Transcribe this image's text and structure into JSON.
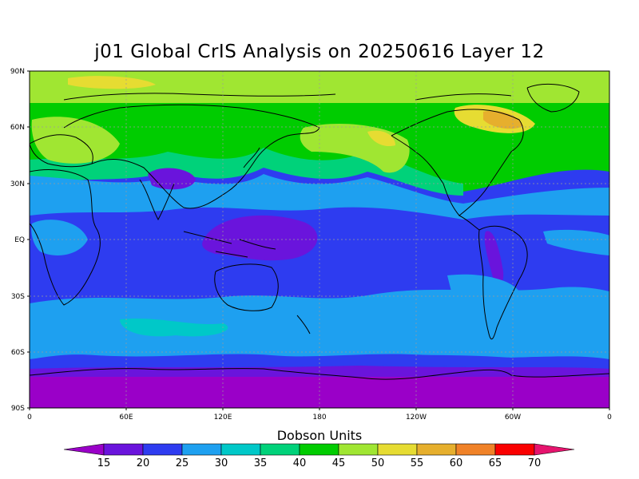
{
  "title": "j01 Global CrIS Analysis on 20250616 Layer 12",
  "lat_ticks": [
    "90N",
    "60N",
    "30N",
    "EQ",
    "30S",
    "60S",
    "90S"
  ],
  "lon_ticks": [
    "0",
    "60E",
    "120E",
    "180",
    "120W",
    "60W",
    "0"
  ],
  "colorbar": {
    "title": "Dobson Units",
    "levels": [
      "15",
      "20",
      "25",
      "30",
      "35",
      "40",
      "45",
      "50",
      "55",
      "60",
      "65",
      "70"
    ],
    "colors": [
      "#9a00c8",
      "#6a14dc",
      "#2e3cf0",
      "#1ea0f0",
      "#00c8c8",
      "#00d27a",
      "#00cc00",
      "#a0e632",
      "#e6dc32",
      "#e6af2d",
      "#f08228",
      "#fa0000",
      "#e6146e"
    ]
  },
  "field_description_colors": {
    "arctic": "#a0e632",
    "midlat_north": "#00cc00",
    "subtropics": "#1ea0f0",
    "tropics": "#2e3cf0",
    "tropical_low": "#6a14dc",
    "south_midlat": "#1ea0f0",
    "antarctic": "#9a00c8"
  }
}
